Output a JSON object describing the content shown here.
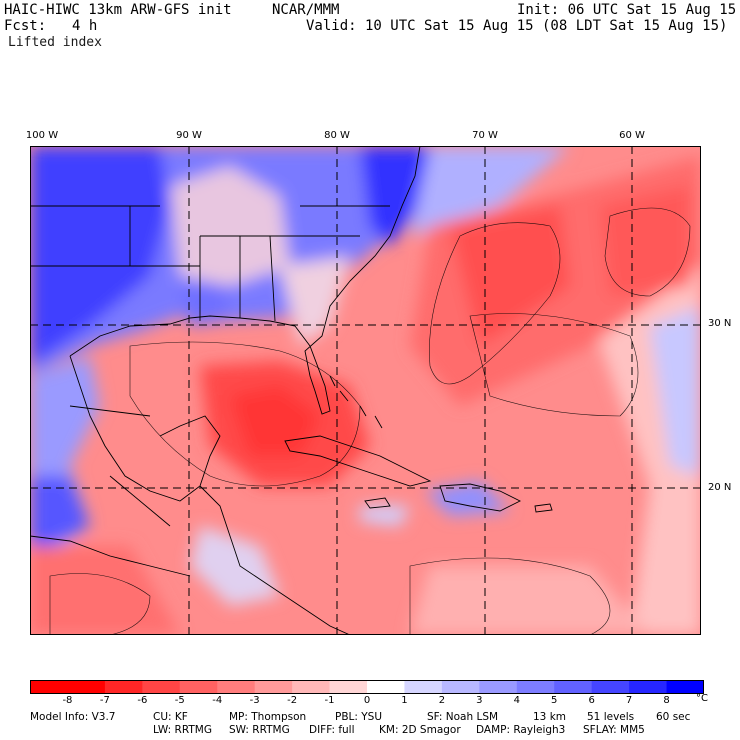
{
  "header": {
    "model": "HAIC-HIWC 13km ARW-GFS init",
    "org": "NCAR/MMM",
    "init": "Init: 06 UTC Sat 15 Aug 15",
    "fcst_label": "Fcst:",
    "fcst_value": "4 h",
    "valid": "Valid: 10 UTC Sat 15 Aug 15 (08 LDT Sat 15 Aug 15)",
    "field": "Lifted index"
  },
  "axes": {
    "longitudes": [
      "100 W",
      "90 W",
      "80 W",
      "70 W",
      "60 W"
    ],
    "latitudes": [
      "30 N",
      "20 N"
    ]
  },
  "colorbar": {
    "labels": [
      "-8",
      "-7",
      "-6",
      "-5",
      "-4",
      "-3",
      "-2",
      "-1",
      "0",
      "1",
      "2",
      "3",
      "4",
      "5",
      "6",
      "7",
      "8"
    ],
    "unit": "°C",
    "colors": [
      "#ff0000",
      "#ff2626",
      "#ff4545",
      "#ff6262",
      "#ff7d7d",
      "#ff9a9a",
      "#ffb8b8",
      "#ffd6d6",
      "#ffffff",
      "#d6d6ff",
      "#b8b8ff",
      "#9a9aff",
      "#7d7dff",
      "#6262ff",
      "#4545ff",
      "#2626ff",
      "#0000ff"
    ]
  },
  "footer": {
    "line1": [
      "Model Info: V3.7",
      "CU: KF",
      "MP: Thompson",
      "PBL: YSU",
      "SF: Noah LSM",
      "13 km",
      "51 levels",
      "60 sec"
    ],
    "line2": [
      "LW: RRTMG",
      "SW: RRTMG",
      "DIFF: full",
      "KM: 2D Smagor",
      "DAMP: Rayleigh3",
      "SFLAY: MM5"
    ]
  }
}
